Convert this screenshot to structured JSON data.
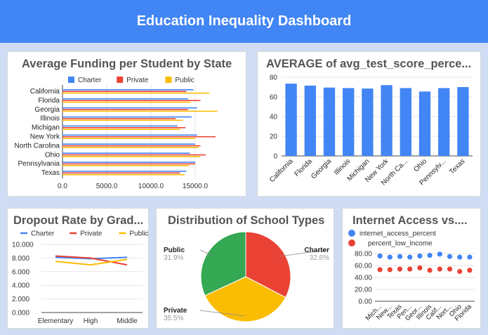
{
  "header": {
    "title": "Education Inequality Dashboard"
  },
  "colors": {
    "charter": "#4285f4",
    "private": "#ea4335",
    "public": "#fbbc04",
    "green": "#34a853"
  },
  "chart_data": [
    {
      "id": "funding",
      "type": "bar",
      "orientation": "horizontal",
      "title": "Average Funding per Student by State",
      "categories": [
        "California",
        "Florida",
        "Georgia",
        "Illinois",
        "Michigan",
        "New York",
        "North Carolina",
        "Ohio",
        "Pennsylvania",
        "Texas"
      ],
      "series": [
        {
          "name": "Charter",
          "values": [
            14800,
            14200,
            15200,
            14600,
            13000,
            15200,
            15000,
            14400,
            15000,
            14000
          ]
        },
        {
          "name": "Private",
          "values": [
            14000,
            15600,
            14200,
            12800,
            13900,
            17300,
            15600,
            16200,
            15000,
            13300
          ]
        },
        {
          "name": "Public",
          "values": [
            16600,
            14500,
            17500,
            13600,
            13300,
            15000,
            15400,
            15600,
            14300,
            13800
          ]
        }
      ],
      "xticks": [
        "0.0",
        "5000.0",
        "10000.0",
        "15000.0"
      ],
      "xlim": [
        0,
        20000
      ],
      "legend": "top"
    },
    {
      "id": "testscore",
      "type": "bar",
      "title": "AVERAGE of avg_test_score_perce...",
      "categories": [
        "California",
        "Florida",
        "Georgia",
        "Illinois",
        "Michigan",
        "New York",
        "North Ca...",
        "Ohio",
        "Pennsylv...",
        "Texas"
      ],
      "values": [
        73.5,
        71.5,
        69.5,
        69,
        68.5,
        72,
        69,
        65.5,
        69,
        70
      ],
      "yticks": [
        "0",
        "20",
        "40",
        "60",
        "80"
      ],
      "ylim": [
        0,
        80
      ]
    },
    {
      "id": "dropout",
      "type": "line",
      "title": "Dropout Rate by Grad...",
      "categories": [
        "Elementary",
        "High",
        "Middle"
      ],
      "series": [
        {
          "name": "Charter",
          "values": [
            8.1,
            7.9,
            8.1
          ]
        },
        {
          "name": "Private",
          "values": [
            8.3,
            8.0,
            7.0
          ]
        },
        {
          "name": "Public",
          "values": [
            7.5,
            7.0,
            7.8
          ]
        }
      ],
      "yticks": [
        "0.000",
        "2.000",
        "4.000",
        "6.000",
        "8.000",
        "10.000"
      ],
      "ylim": [
        0,
        10
      ],
      "legend": "top"
    },
    {
      "id": "schooltypes",
      "type": "pie",
      "title": "Distribution of School Types",
      "slices": [
        {
          "label": "Charter",
          "value": 32.6,
          "pct": "32.6%"
        },
        {
          "label": "Private",
          "value": 35.5,
          "pct": "35.5%"
        },
        {
          "label": "Public",
          "value": 31.9,
          "pct": "31.9%"
        }
      ]
    },
    {
      "id": "internet",
      "type": "scatter",
      "title": "Internet Access vs....",
      "categories": [
        "Mich...",
        "New...",
        "Texas",
        "Pen...",
        "Geor...",
        "Illinois",
        "Calif...",
        "Nort...",
        "Ohio",
        "Florida"
      ],
      "series": [
        {
          "name": "internet_access_percent",
          "values": [
            76,
            74,
            75,
            74,
            76,
            77,
            79,
            75,
            74,
            74
          ]
        },
        {
          "name": "percent_low_income",
          "values": [
            53,
            53,
            54,
            54,
            56,
            52,
            54,
            54,
            50,
            52
          ]
        }
      ],
      "yticks": [
        "0.00",
        "20.00",
        "40.00",
        "60.00",
        "80.00"
      ],
      "ylim": [
        0,
        80
      ],
      "legend": "top-left"
    }
  ]
}
